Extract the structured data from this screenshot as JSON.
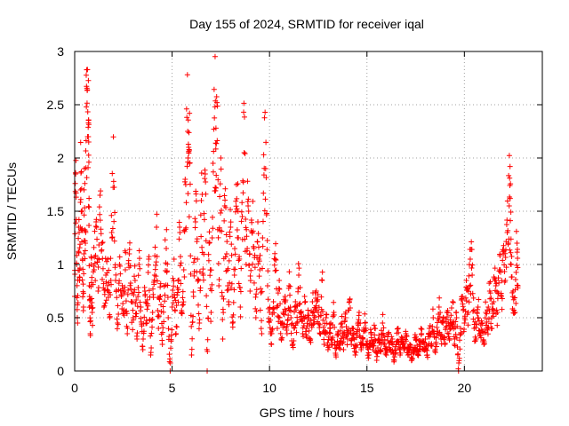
{
  "chart_data": {
    "type": "scatter",
    "title": "Day 155 of 2024, SRMTID for receiver iqal",
    "xlabel": "GPS time / hours",
    "ylabel": "SRMTID / TECUs",
    "xlim": [
      0,
      24
    ],
    "ylim": [
      0,
      3
    ],
    "xticks": [
      0,
      5,
      10,
      15,
      20
    ],
    "xtick_labels": [
      "0",
      "5",
      "10",
      "15",
      "20"
    ],
    "yticks": [
      0,
      0.5,
      1,
      1.5,
      2,
      2.5,
      3
    ],
    "ytick_labels": [
      "0",
      "0.5",
      "1",
      "1.5",
      "2",
      "2.5",
      "3"
    ],
    "grid": true,
    "marker": "plus",
    "color": "#ff0000",
    "series": [
      {
        "name": "SRMTID",
        "envelope_description": "dense cloud of points every ~30 s sampled over ~22.7 hours",
        "points": [
          [
            0.0,
            0.7
          ],
          [
            0.05,
            1.85
          ],
          [
            0.1,
            1.0
          ],
          [
            0.15,
            0.45
          ],
          [
            0.2,
            1.35
          ],
          [
            0.25,
            0.85
          ],
          [
            0.3,
            1.7
          ],
          [
            0.35,
            1.5
          ],
          [
            0.4,
            1.05
          ],
          [
            0.45,
            0.6
          ],
          [
            0.5,
            1.9
          ],
          [
            0.55,
            1.2
          ],
          [
            0.6,
            2.48
          ],
          [
            0.65,
            2.64
          ],
          [
            0.7,
            2.2
          ],
          [
            0.72,
            2.15
          ],
          [
            0.75,
            0.8
          ],
          [
            0.8,
            0.35
          ],
          [
            0.85,
            1.0
          ],
          [
            0.9,
            0.55
          ],
          [
            1.0,
            0.95
          ],
          [
            1.1,
            1.4
          ],
          [
            1.2,
            0.75
          ],
          [
            1.3,
            1.65
          ],
          [
            1.4,
            1.2
          ],
          [
            1.5,
            0.6
          ],
          [
            1.6,
            0.9
          ],
          [
            1.7,
            1.05
          ],
          [
            1.8,
            0.5
          ],
          [
            1.9,
            1.3
          ],
          [
            2.0,
            1.78
          ],
          [
            2.1,
            0.85
          ],
          [
            2.2,
            0.45
          ],
          [
            2.3,
            1.0
          ],
          [
            2.4,
            0.7
          ],
          [
            2.5,
            0.55
          ],
          [
            2.6,
            0.95
          ],
          [
            2.7,
            0.35
          ],
          [
            2.8,
            1.1
          ],
          [
            2.9,
            0.65
          ],
          [
            3.0,
            0.5
          ],
          [
            3.1,
            0.85
          ],
          [
            3.2,
            0.3
          ],
          [
            3.3,
            1.0
          ],
          [
            3.4,
            0.6
          ],
          [
            3.5,
            0.2
          ],
          [
            3.6,
            0.75
          ],
          [
            3.7,
            0.45
          ],
          [
            3.8,
            1.05
          ],
          [
            3.9,
            0.15
          ],
          [
            4.0,
            0.55
          ],
          [
            4.1,
            0.9
          ],
          [
            4.2,
            1.35
          ],
          [
            4.3,
            0.4
          ],
          [
            4.4,
            0.7
          ],
          [
            4.5,
            0.25
          ],
          [
            4.6,
            0.8
          ],
          [
            4.7,
            1.15
          ],
          [
            4.8,
            0.5
          ],
          [
            4.9,
            0.0
          ],
          [
            5.0,
            0.6
          ],
          [
            5.1,
            1.05
          ],
          [
            5.2,
            0.35
          ],
          [
            5.3,
            0.85
          ],
          [
            5.4,
            1.3
          ],
          [
            5.5,
            0.55
          ],
          [
            5.6,
            0.95
          ],
          [
            5.7,
            1.75
          ],
          [
            5.8,
            2.25
          ],
          [
            5.85,
            2.1
          ],
          [
            5.9,
            1.95
          ],
          [
            6.0,
            0.15
          ],
          [
            6.1,
            0.7
          ],
          [
            6.2,
            1.4
          ],
          [
            6.3,
            1.05
          ],
          [
            6.4,
            0.45
          ],
          [
            6.5,
            1.6
          ],
          [
            6.6,
            0.9
          ],
          [
            6.7,
            1.85
          ],
          [
            6.8,
            0.0
          ],
          [
            6.9,
            1.2
          ],
          [
            7.0,
            0.55
          ],
          [
            7.1,
            1.95
          ],
          [
            7.2,
            2.48
          ],
          [
            7.25,
            2.28
          ],
          [
            7.3,
            2.52
          ],
          [
            7.4,
            0.8
          ],
          [
            7.5,
            2.0
          ],
          [
            7.6,
            0.3
          ],
          [
            7.7,
            1.55
          ],
          [
            7.8,
            1.1
          ],
          [
            7.9,
            0.65
          ],
          [
            8.0,
            1.35
          ],
          [
            8.1,
            0.45
          ],
          [
            8.2,
            0.9
          ],
          [
            8.3,
            1.75
          ],
          [
            8.4,
            1.25
          ],
          [
            8.5,
            0.6
          ],
          [
            8.6,
            1.45
          ],
          [
            8.7,
            2.05
          ],
          [
            8.8,
            1.0
          ],
          [
            8.9,
            1.55
          ],
          [
            9.0,
            0.75
          ],
          [
            9.1,
            1.3
          ],
          [
            9.2,
            1.15
          ],
          [
            9.3,
            0.5
          ],
          [
            9.4,
            1.4
          ],
          [
            9.5,
            0.95
          ],
          [
            9.6,
            0.35
          ],
          [
            9.7,
            2.03
          ],
          [
            9.8,
            1.9
          ],
          [
            9.9,
            0.8
          ],
          [
            10.0,
            0.55
          ],
          [
            10.1,
            0.25
          ],
          [
            10.2,
            0.65
          ],
          [
            10.3,
            1.05
          ],
          [
            10.4,
            0.4
          ],
          [
            10.5,
            0.85
          ],
          [
            10.6,
            0.3
          ],
          [
            10.7,
            0.55
          ],
          [
            10.8,
            0.7
          ],
          [
            10.9,
            0.35
          ],
          [
            11.0,
            0.8
          ],
          [
            11.1,
            0.5
          ],
          [
            11.2,
            0.25
          ],
          [
            11.3,
            0.6
          ],
          [
            11.4,
            0.45
          ],
          [
            11.5,
            0.9
          ],
          [
            11.6,
            0.55
          ],
          [
            11.7,
            0.35
          ],
          [
            11.8,
            0.7
          ],
          [
            11.9,
            0.4
          ],
          [
            12.0,
            0.5
          ],
          [
            12.1,
            0.3
          ],
          [
            12.2,
            0.65
          ],
          [
            12.3,
            0.45
          ],
          [
            12.4,
            0.75
          ],
          [
            12.5,
            0.55
          ],
          [
            12.6,
            0.35
          ],
          [
            12.7,
            0.85
          ],
          [
            12.8,
            0.25
          ],
          [
            12.9,
            0.5
          ],
          [
            13.0,
            0.2
          ],
          [
            13.1,
            0.4
          ],
          [
            13.2,
            0.3
          ],
          [
            13.3,
            0.55
          ],
          [
            13.4,
            0.15
          ],
          [
            13.5,
            0.35
          ],
          [
            13.6,
            0.25
          ],
          [
            13.7,
            0.45
          ],
          [
            13.8,
            0.2
          ],
          [
            13.9,
            0.5
          ],
          [
            14.0,
            0.3
          ],
          [
            14.1,
            0.65
          ],
          [
            14.2,
            0.25
          ],
          [
            14.3,
            0.4
          ],
          [
            14.4,
            0.15
          ],
          [
            14.5,
            0.35
          ],
          [
            14.6,
            0.55
          ],
          [
            14.7,
            0.2
          ],
          [
            14.8,
            0.3
          ],
          [
            14.9,
            0.45
          ],
          [
            15.0,
            0.25
          ],
          [
            15.1,
            0.15
          ],
          [
            15.2,
            0.35
          ],
          [
            15.3,
            0.2
          ],
          [
            15.4,
            0.4
          ],
          [
            15.5,
            0.1
          ],
          [
            15.6,
            0.3
          ],
          [
            15.7,
            0.2
          ],
          [
            15.8,
            0.45
          ],
          [
            15.9,
            0.25
          ],
          [
            16.0,
            0.15
          ],
          [
            16.1,
            0.35
          ],
          [
            16.2,
            0.2
          ],
          [
            16.3,
            0.3
          ],
          [
            16.4,
            0.1
          ],
          [
            16.5,
            0.25
          ],
          [
            16.6,
            0.4
          ],
          [
            16.7,
            0.15
          ],
          [
            16.8,
            0.3
          ],
          [
            16.9,
            0.2
          ],
          [
            17.0,
            0.35
          ],
          [
            17.1,
            0.15
          ],
          [
            17.2,
            0.25
          ],
          [
            17.3,
            0.1
          ],
          [
            17.4,
            0.2
          ],
          [
            17.5,
            0.3
          ],
          [
            17.6,
            0.15
          ],
          [
            17.7,
            0.25
          ],
          [
            17.8,
            0.35
          ],
          [
            17.9,
            0.2
          ],
          [
            18.0,
            0.3
          ],
          [
            18.1,
            0.15
          ],
          [
            18.2,
            0.4
          ],
          [
            18.3,
            0.25
          ],
          [
            18.4,
            0.5
          ],
          [
            18.5,
            0.2
          ],
          [
            18.6,
            0.35
          ],
          [
            18.7,
            0.6
          ],
          [
            18.8,
            0.3
          ],
          [
            18.9,
            0.45
          ],
          [
            19.0,
            0.25
          ],
          [
            19.1,
            0.55
          ],
          [
            19.2,
            0.35
          ],
          [
            19.3,
            0.4
          ],
          [
            19.4,
            0.65
          ],
          [
            19.5,
            0.3
          ],
          [
            19.6,
            0.5
          ],
          [
            19.7,
            0.0
          ],
          [
            19.8,
            0.4
          ],
          [
            19.9,
            0.7
          ],
          [
            20.0,
            0.45
          ],
          [
            20.1,
            0.85
          ],
          [
            20.2,
            0.55
          ],
          [
            20.3,
            1.05
          ],
          [
            20.4,
            0.9
          ],
          [
            20.5,
            0.4
          ],
          [
            20.6,
            0.3
          ],
          [
            20.7,
            0.6
          ],
          [
            20.8,
            0.35
          ],
          [
            20.9,
            0.45
          ],
          [
            21.0,
            0.25
          ],
          [
            21.1,
            0.55
          ],
          [
            21.2,
            0.4
          ],
          [
            21.3,
            0.75
          ],
          [
            21.4,
            0.5
          ],
          [
            21.5,
            0.65
          ],
          [
            21.6,
            0.85
          ],
          [
            21.7,
            0.55
          ],
          [
            21.8,
            0.95
          ],
          [
            21.9,
            0.7
          ],
          [
            22.0,
            1.1
          ],
          [
            22.1,
            0.85
          ],
          [
            22.2,
            1.3
          ],
          [
            22.3,
            1.55
          ],
          [
            22.35,
            1.62
          ],
          [
            22.4,
            1.0
          ],
          [
            22.5,
            0.75
          ],
          [
            22.6,
            0.55
          ],
          [
            22.7,
            1.2
          ],
          [
            22.75,
            0.8
          ]
        ]
      }
    ]
  }
}
